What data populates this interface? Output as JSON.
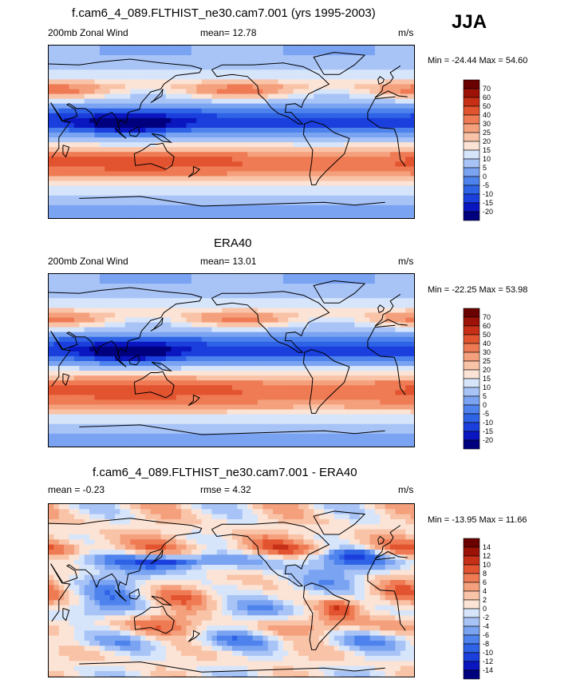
{
  "season_label": "JJA",
  "panels": [
    {
      "title": "f.cam6_4_089.FLTHIST_ne30.cam7.001 (yrs 1995-2003)",
      "left_label": "200mb Zonal Wind",
      "center_label": "mean=  12.78",
      "right_label": "m/s",
      "minmax": "Min = -24.44 Max =  54.60"
    },
    {
      "title": "ERA40",
      "left_label": "200mb Zonal Wind",
      "center_label": "mean=  13.01",
      "right_label": "m/s",
      "minmax": "Min = -22.25 Max =  53.98"
    },
    {
      "title": "f.cam6_4_089.FLTHIST_ne30.cam7.001 - ERA40",
      "left_label": "mean =  -0.23",
      "center_label": "rmse =    4.32",
      "right_label": "m/s",
      "minmax": "Min = -13.95 Max =  11.66"
    }
  ],
  "chart_data": [
    {
      "type": "heatmap",
      "title": "f.cam6_4_089.FLTHIST_ne30.cam7.001 (yrs 1995-2003)",
      "variable": "200mb Zonal Wind",
      "units": "m/s",
      "mean": 12.78,
      "min": -24.44,
      "max": 54.6,
      "colorbar_levels": [
        "-20",
        "-15",
        "-10",
        "-5",
        "0",
        "5",
        "10",
        "15",
        "20",
        "25",
        "30",
        "40",
        "50",
        "60",
        "70"
      ],
      "colors": [
        "#00007f",
        "#0a16c0",
        "#1a3fdd",
        "#2f63e6",
        "#4e82ec",
        "#7aa3f2",
        "#a8c4f7",
        "#d7e5fb",
        "#fbe3d5",
        "#f9c3a8",
        "#f5a07c",
        "#ef7b55",
        "#e2532f",
        "#c72f16",
        "#9d1206",
        "#6a0000"
      ],
      "latitudinal_profile": [
        {
          "lat": 80,
          "value": 5
        },
        {
          "lat": 60,
          "value": 12
        },
        {
          "lat": 45,
          "value": 27
        },
        {
          "lat": 35,
          "value": 12
        },
        {
          "lat": 20,
          "value": -8
        },
        {
          "lat": 10,
          "value": -15
        },
        {
          "lat": 0,
          "value": 2
        },
        {
          "lat": -15,
          "value": 18
        },
        {
          "lat": -30,
          "value": 45
        },
        {
          "lat": -45,
          "value": 27
        },
        {
          "lat": -60,
          "value": 12
        },
        {
          "lat": -80,
          "value": 2
        }
      ]
    },
    {
      "type": "heatmap",
      "title": "ERA40",
      "variable": "200mb Zonal Wind",
      "units": "m/s",
      "mean": 13.01,
      "min": -22.25,
      "max": 53.98,
      "colorbar_levels": [
        "-20",
        "-15",
        "-10",
        "-5",
        "0",
        "5",
        "10",
        "15",
        "20",
        "25",
        "30",
        "40",
        "50",
        "60",
        "70"
      ],
      "colors": [
        "#00007f",
        "#0a16c0",
        "#1a3fdd",
        "#2f63e6",
        "#4e82ec",
        "#7aa3f2",
        "#a8c4f7",
        "#d7e5fb",
        "#fbe3d5",
        "#f9c3a8",
        "#f5a07c",
        "#ef7b55",
        "#e2532f",
        "#c72f16",
        "#9d1206",
        "#6a0000"
      ],
      "latitudinal_profile": [
        {
          "lat": 80,
          "value": 5
        },
        {
          "lat": 60,
          "value": 12
        },
        {
          "lat": 45,
          "value": 25
        },
        {
          "lat": 35,
          "value": 12
        },
        {
          "lat": 20,
          "value": -8
        },
        {
          "lat": 10,
          "value": -14
        },
        {
          "lat": 0,
          "value": 2
        },
        {
          "lat": -15,
          "value": 20
        },
        {
          "lat": -30,
          "value": 45
        },
        {
          "lat": -45,
          "value": 28
        },
        {
          "lat": -60,
          "value": 12
        },
        {
          "lat": -80,
          "value": 2
        }
      ]
    },
    {
      "type": "heatmap",
      "title": "f.cam6_4_089.FLTHIST_ne30.cam7.001 - ERA40",
      "units": "m/s",
      "mean": -0.23,
      "rmse": 4.32,
      "min": -13.95,
      "max": 11.66,
      "colorbar_levels": [
        "-14",
        "-12",
        "-10",
        "-8",
        "-6",
        "-4",
        "-2",
        "0",
        "2",
        "4",
        "6",
        "8",
        "10",
        "12",
        "14"
      ],
      "colors": [
        "#00007f",
        "#0a16c0",
        "#1a3fdd",
        "#2f63e6",
        "#4e82ec",
        "#7aa3f2",
        "#a8c4f7",
        "#d7e5fb",
        "#fbe3d5",
        "#f9c3a8",
        "#f5a07c",
        "#ef7b55",
        "#e2532f",
        "#c72f16",
        "#9d1206",
        "#6a0000"
      ],
      "latitudinal_profile": [
        {
          "lat": 80,
          "value": 1
        },
        {
          "lat": 60,
          "value": 2
        },
        {
          "lat": 45,
          "value": 5
        },
        {
          "lat": 35,
          "value": -5
        },
        {
          "lat": 20,
          "value": -1
        },
        {
          "lat": 0,
          "value": 1
        },
        {
          "lat": -15,
          "value": -1
        },
        {
          "lat": -30,
          "value": 4
        },
        {
          "lat": -45,
          "value": -3
        },
        {
          "lat": -60,
          "value": 1
        },
        {
          "lat": -80,
          "value": 0
        }
      ]
    }
  ]
}
